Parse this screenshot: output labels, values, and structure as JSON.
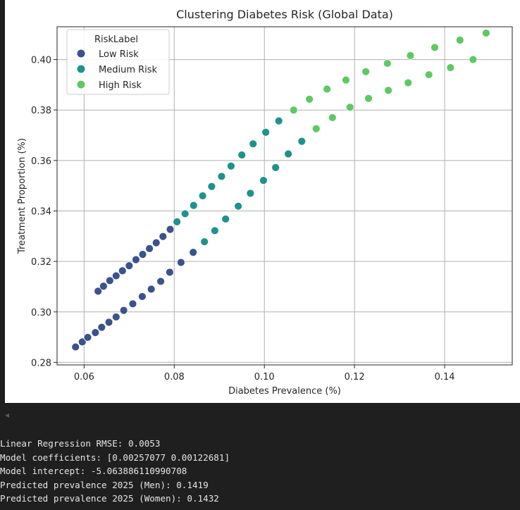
{
  "chart_data": {
    "type": "scatter",
    "title": "Clustering Diabetes Risk (Global Data)",
    "xlabel": "Diabetes Prevalence (%)",
    "ylabel": "Treatment Proportion (%)",
    "xlim": [
      0.054,
      0.155
    ],
    "ylim": [
      0.279,
      0.413
    ],
    "xticks": [
      0.06,
      0.08,
      0.1,
      0.12,
      0.14
    ],
    "xtick_labels": [
      "0.06",
      "0.08",
      "0.10",
      "0.12",
      "0.14"
    ],
    "yticks": [
      0.28,
      0.3,
      0.32,
      0.34,
      0.36,
      0.38,
      0.4
    ],
    "ytick_labels": [
      "0.28",
      "0.30",
      "0.32",
      "0.34",
      "0.36",
      "0.38",
      "0.40"
    ],
    "grid": true,
    "legend": {
      "title": "RiskLabel",
      "placement": "top-left"
    },
    "series": [
      {
        "name": "Low Risk",
        "color": "#3b528b",
        "points": [
          [
            0.0581,
            0.2861
          ],
          [
            0.0596,
            0.2881
          ],
          [
            0.0608,
            0.2899
          ],
          [
            0.0625,
            0.2918
          ],
          [
            0.0639,
            0.2939
          ],
          [
            0.0655,
            0.2959
          ],
          [
            0.0671,
            0.298
          ],
          [
            0.0688,
            0.3006
          ],
          [
            0.0708,
            0.3032
          ],
          [
            0.0729,
            0.3061
          ],
          [
            0.0749,
            0.309
          ],
          [
            0.077,
            0.3121
          ],
          [
            0.079,
            0.3157
          ],
          [
            0.0815,
            0.3196
          ],
          [
            0.0842,
            0.3236
          ],
          [
            0.0631,
            0.3082
          ],
          [
            0.0643,
            0.3102
          ],
          [
            0.0657,
            0.3124
          ],
          [
            0.0671,
            0.3143
          ],
          [
            0.0685,
            0.3163
          ],
          [
            0.07,
            0.3183
          ],
          [
            0.0715,
            0.3207
          ],
          [
            0.073,
            0.3228
          ],
          [
            0.0745,
            0.3251
          ],
          [
            0.076,
            0.3274
          ],
          [
            0.0775,
            0.3299
          ],
          [
            0.0791,
            0.3327
          ]
        ]
      },
      {
        "name": "Medium Risk",
        "color": "#21918c",
        "points": [
          [
            0.0806,
            0.3357
          ],
          [
            0.0824,
            0.3389
          ],
          [
            0.0843,
            0.3422
          ],
          [
            0.0863,
            0.346
          ],
          [
            0.0883,
            0.3497
          ],
          [
            0.0905,
            0.3537
          ],
          [
            0.0926,
            0.3578
          ],
          [
            0.095,
            0.3622
          ],
          [
            0.0975,
            0.3666
          ],
          [
            0.1003,
            0.3712
          ],
          [
            0.1032,
            0.3757
          ],
          [
            0.0867,
            0.3278
          ],
          [
            0.089,
            0.3322
          ],
          [
            0.0914,
            0.3368
          ],
          [
            0.0942,
            0.3419
          ],
          [
            0.0969,
            0.347
          ],
          [
            0.0998,
            0.3521
          ],
          [
            0.1025,
            0.3572
          ],
          [
            0.1053,
            0.3626
          ],
          [
            0.1083,
            0.3676
          ]
        ]
      },
      {
        "name": "High Risk",
        "color": "#5ec962",
        "points": [
          [
            0.1065,
            0.38
          ],
          [
            0.11,
            0.3843
          ],
          [
            0.1139,
            0.3883
          ],
          [
            0.1181,
            0.3919
          ],
          [
            0.1225,
            0.3952
          ],
          [
            0.1273,
            0.3985
          ],
          [
            0.1324,
            0.4016
          ],
          [
            0.1378,
            0.4048
          ],
          [
            0.1434,
            0.4077
          ],
          [
            0.1492,
            0.4105
          ],
          [
            0.1115,
            0.3726
          ],
          [
            0.1151,
            0.377
          ],
          [
            0.119,
            0.3811
          ],
          [
            0.1231,
            0.3846
          ],
          [
            0.1275,
            0.3878
          ],
          [
            0.1319,
            0.3908
          ],
          [
            0.1365,
            0.394
          ],
          [
            0.1413,
            0.3968
          ],
          [
            0.1463,
            0.4
          ]
        ]
      }
    ]
  },
  "ui": {
    "collapse_glyph": "◂"
  },
  "console": {
    "lines": [
      "Linear Regression RMSE: 0.0053",
      "Model coefficients: [0.00257077 0.00122681]",
      "Model intercept: -5.063886110990708",
      "Predicted prevalence 2025 (Men): 0.1419",
      "Predicted prevalence 2025 (Women): 0.1432"
    ]
  }
}
